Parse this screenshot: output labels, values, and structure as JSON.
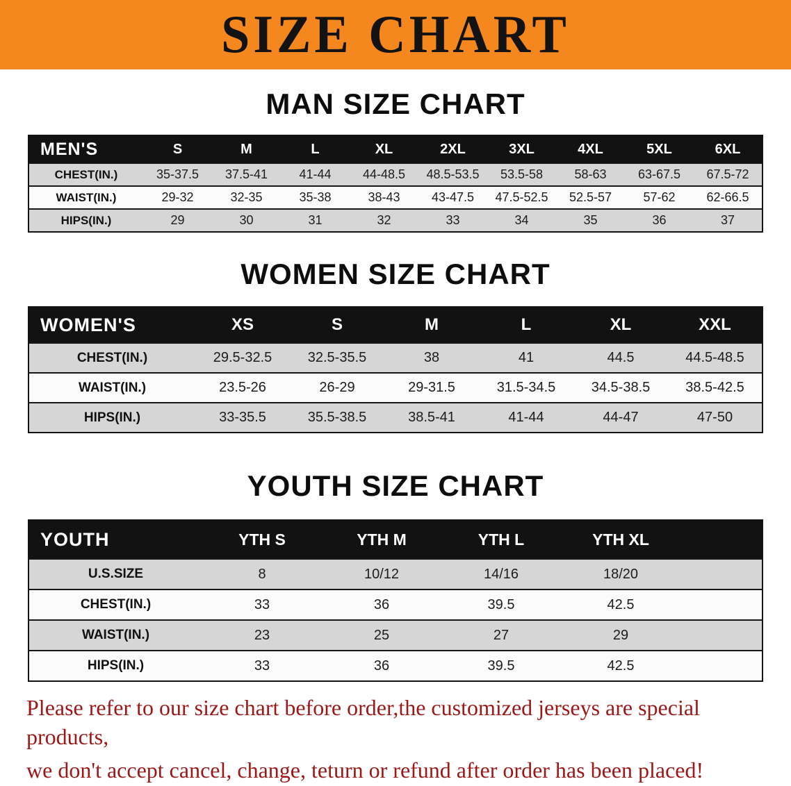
{
  "banner": {
    "title": "SIZE CHART",
    "bg_color": "#f5871f"
  },
  "sections": [
    {
      "id": "men",
      "heading": "MAN SIZE CHART",
      "table": {
        "header_label": "MEN'S",
        "columns": [
          "S",
          "M",
          "L",
          "XL",
          "2XL",
          "3XL",
          "4XL",
          "5XL",
          "6XL"
        ],
        "rows": [
          {
            "label": "CHEST(IN.)",
            "values": [
              "35-37.5",
              "37.5-41",
              "41-44",
              "44-48.5",
              "48.5-53.5",
              "53.5-58",
              "58-63",
              "63-67.5",
              "67.5-72"
            ]
          },
          {
            "label": "WAIST(IN.)",
            "values": [
              "29-32",
              "32-35",
              "35-38",
              "38-43",
              "43-47.5",
              "47.5-52.5",
              "52.5-57",
              "57-62",
              "62-66.5"
            ]
          },
          {
            "label": "HIPS(IN.)",
            "values": [
              "29",
              "30",
              "31",
              "32",
              "33",
              "34",
              "35",
              "36",
              "37"
            ]
          }
        ]
      }
    },
    {
      "id": "women",
      "heading": "WOMEN SIZE CHART",
      "table": {
        "header_label": "WOMEN'S",
        "columns": [
          "XS",
          "S",
          "M",
          "L",
          "XL",
          "XXL"
        ],
        "rows": [
          {
            "label": "CHEST(IN.)",
            "values": [
              "29.5-32.5",
              "32.5-35.5",
              "38",
              "41",
              "44.5",
              "44.5-48.5"
            ]
          },
          {
            "label": "WAIST(IN.)",
            "values": [
              "23.5-26",
              "26-29",
              "29-31.5",
              "31.5-34.5",
              "34.5-38.5",
              "38.5-42.5"
            ]
          },
          {
            "label": "HIPS(IN.)",
            "values": [
              "33-35.5",
              "35.5-38.5",
              "38.5-41",
              "41-44",
              "44-47",
              "47-50"
            ]
          }
        ]
      }
    },
    {
      "id": "youth",
      "heading": "YOUTH SIZE CHART",
      "table": {
        "header_label": "YOUTH",
        "columns": [
          "YTH S",
          "YTH M",
          "YTH L",
          "YTH XL"
        ],
        "rows": [
          {
            "label": "U.S.SIZE",
            "values": [
              "8",
              "10/12",
              "14/16",
              "18/20"
            ]
          },
          {
            "label": "CHEST(IN.)",
            "values": [
              "33",
              "36",
              "39.5",
              "42.5"
            ]
          },
          {
            "label": "WAIST(IN.)",
            "values": [
              "23",
              "25",
              "27",
              "29"
            ]
          },
          {
            "label": "HIPS(IN.)",
            "values": [
              "33",
              "36",
              "39.5",
              "42.5"
            ]
          }
        ]
      }
    }
  ],
  "footer": {
    "line1": "Please refer to our size chart before order,the customized jerseys are special products,",
    "line2": "we don't accept cancel, change, teturn or refund after order has been placed!",
    "text_color": "#9e1717"
  }
}
